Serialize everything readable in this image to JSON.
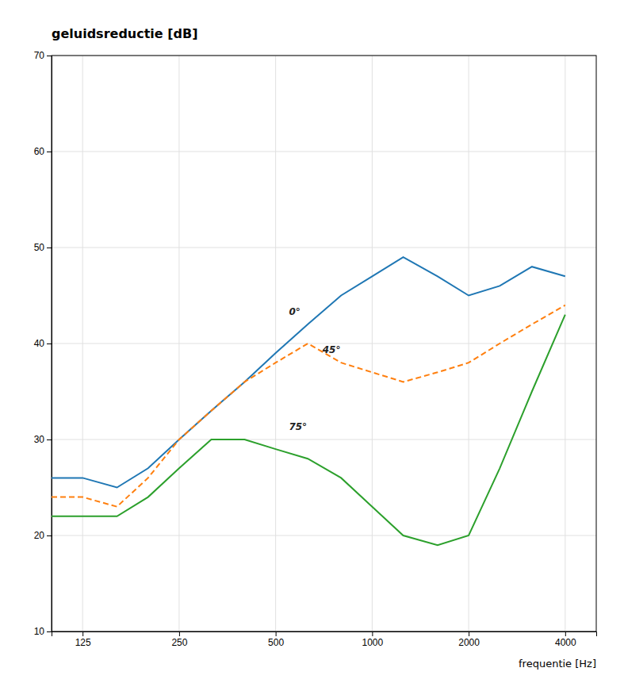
{
  "chart_data": {
    "type": "line",
    "title": "geluidsreductie [dB]",
    "xlabel": "frequentie [Hz]",
    "log": "x",
    "grid": true,
    "xlim": [
      100,
      5000
    ],
    "ylim": [
      10,
      70
    ],
    "xticks": [
      125,
      250,
      500,
      1000,
      2000,
      4000
    ],
    "yticks": [
      10,
      20,
      30,
      40,
      50,
      60,
      70
    ],
    "x": [
      100,
      125,
      160,
      200,
      250,
      315,
      400,
      500,
      630,
      800,
      1000,
      1250,
      1600,
      2000,
      2500,
      3150,
      4000
    ],
    "series": [
      {
        "values": [
          26,
          26,
          25,
          27,
          30,
          33,
          36,
          39,
          42,
          45,
          47,
          49,
          47,
          45,
          46,
          48,
          47
        ],
        "line_style": "solid"
      },
      {
        "values": [
          24,
          24,
          23,
          26,
          30,
          33,
          36,
          38,
          40,
          38,
          37,
          36,
          37,
          38,
          40,
          42,
          44
        ],
        "line_style": "dashed"
      },
      {
        "values": [
          22,
          22,
          22,
          24,
          27,
          30,
          30,
          29,
          28,
          26,
          23,
          20,
          19,
          20,
          27,
          35,
          43
        ],
        "line_style": "solid"
      }
    ],
    "annotations": [
      {
        "text": "0°",
        "x": 550,
        "y": 43
      },
      {
        "text": "45°",
        "x": 700,
        "y": 39
      },
      {
        "text": "75°",
        "x": 550,
        "y": 31
      }
    ]
  }
}
